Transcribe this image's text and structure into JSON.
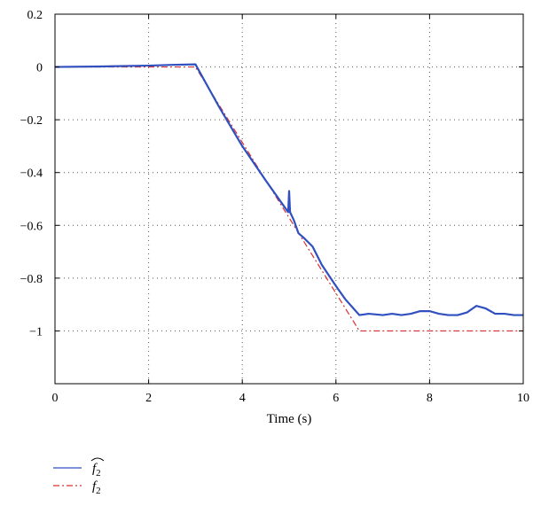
{
  "chart_data": {
    "type": "line",
    "title": "",
    "xlabel": "Time (s)",
    "ylabel": "",
    "xlim": [
      0,
      10
    ],
    "ylim": [
      -1.2,
      0.2
    ],
    "xticks": [
      0,
      2,
      4,
      6,
      8,
      10
    ],
    "yticks": [
      0.2,
      0,
      -0.2,
      -0.4,
      -0.6,
      -0.8,
      -1
    ],
    "ytick_labels": [
      "0.2",
      "0",
      "−0.2",
      "−0.4",
      "−0.6",
      "−0.8",
      "−1"
    ],
    "xtick_labels": [
      "0",
      "2",
      "4",
      "6",
      "8",
      "10"
    ],
    "grid": true,
    "legend_position": "below",
    "series": [
      {
        "name": "f̂₂",
        "label_main": "f",
        "label_sub": "2",
        "label_hat": true,
        "color": "#3050c0",
        "style": "solid",
        "x": [
          0,
          1,
          2,
          2.5,
          3,
          3.5,
          4,
          4.5,
          4.9,
          4.98,
          5.0,
          5.02,
          5.1,
          5.2,
          5.3,
          5.5,
          5.7,
          6.0,
          6.2,
          6.4,
          6.5,
          6.7,
          7.0,
          7.2,
          7.4,
          7.6,
          7.8,
          8.0,
          8.2,
          8.4,
          8.6,
          8.8,
          9.0,
          9.2,
          9.4,
          9.6,
          9.8,
          10
        ],
        "y": [
          0,
          0.002,
          0.005,
          0.008,
          0.01,
          -0.15,
          -0.3,
          -0.43,
          -0.53,
          -0.55,
          -0.47,
          -0.55,
          -0.58,
          -0.63,
          -0.645,
          -0.68,
          -0.75,
          -0.83,
          -0.88,
          -0.92,
          -0.94,
          -0.935,
          -0.94,
          -0.935,
          -0.94,
          -0.935,
          -0.925,
          -0.925,
          -0.935,
          -0.94,
          -0.94,
          -0.93,
          -0.905,
          -0.915,
          -0.935,
          -0.935,
          -0.94,
          -0.94
        ]
      },
      {
        "name": "f₂",
        "label_main": "f",
        "label_sub": "2",
        "label_hat": false,
        "color": "#d83030",
        "style": "dashdot",
        "x": [
          0,
          3,
          6.5,
          10
        ],
        "y": [
          0,
          0,
          -1,
          -1
        ]
      }
    ]
  }
}
